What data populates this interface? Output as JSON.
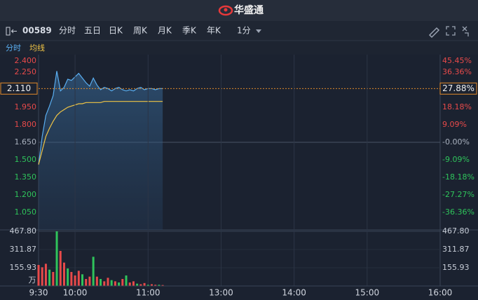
{
  "header": {
    "logo": "华盛通"
  },
  "toolbar": {
    "symbol": "00589",
    "tabs": [
      "分时",
      "五日",
      "日K",
      "周K",
      "月K",
      "季K",
      "年K",
      "1分"
    ],
    "active": 0
  },
  "chart_data": [
    {
      "type": "line",
      "x": [
        0,
        3,
        6,
        9,
        12,
        15,
        18,
        21,
        24,
        27,
        30,
        33,
        36,
        39,
        42,
        45,
        48,
        51,
        54,
        57,
        60,
        63,
        66,
        69,
        72,
        75,
        78,
        81,
        84,
        87,
        90,
        93,
        96,
        99,
        102
      ],
      "series": [
        {
          "name": "分时",
          "color": "#5aaef0",
          "values": [
            1.46,
            1.7,
            1.88,
            1.96,
            2.05,
            2.26,
            2.09,
            2.12,
            2.19,
            2.18,
            2.21,
            2.24,
            2.2,
            2.16,
            2.13,
            2.2,
            2.14,
            2.1,
            2.12,
            2.11,
            2.09,
            2.11,
            2.12,
            2.1,
            2.09,
            2.1,
            2.09,
            2.11,
            2.12,
            2.1,
            2.11,
            2.11,
            2.1,
            2.11,
            2.11
          ]
        },
        {
          "name": "均线",
          "color": "#f0c445",
          "values": [
            1.46,
            1.58,
            1.7,
            1.77,
            1.83,
            1.88,
            1.91,
            1.93,
            1.95,
            1.96,
            1.97,
            1.98,
            1.98,
            1.99,
            1.99,
            1.99,
            1.99,
            1.99,
            2.0,
            2.0,
            2.0,
            2.0,
            2.0,
            2.0,
            2.0,
            2.0,
            2.0,
            2.0,
            2.0,
            2.0,
            2.0,
            2.0,
            2.0,
            2.0,
            2.0
          ]
        }
      ],
      "xlim": [
        0,
        330
      ],
      "ylim": [
        0.9,
        2.4
      ],
      "yticks": [
        {
          "value": 2.4,
          "label": "2.400"
        },
        {
          "value": 2.25,
          "label": "2.250"
        },
        {
          "value": 1.95,
          "label": "1.950"
        },
        {
          "value": 1.8,
          "label": "1.800"
        },
        {
          "value": 1.65,
          "label": "1.650"
        },
        {
          "value": 1.5,
          "label": "1.500"
        },
        {
          "value": 1.35,
          "label": "1.350"
        },
        {
          "value": 1.2,
          "label": "1.200"
        },
        {
          "value": 1.05,
          "label": "1.050"
        }
      ],
      "y2lim": [
        -45.45,
        45.45
      ],
      "y2ticks": [
        {
          "value": 45.45,
          "label": "45.45%"
        },
        {
          "value": 36.36,
          "label": "36.36%"
        },
        {
          "value": 18.18,
          "label": "18.18%"
        },
        {
          "value": 9.09,
          "label": "9.09%"
        },
        {
          "value": 0,
          "label": "-0.00%"
        },
        {
          "value": -9.09,
          "label": "-9.09%"
        },
        {
          "value": -18.18,
          "label": "-18.18%"
        },
        {
          "value": -27.27,
          "label": "-27.27%"
        },
        {
          "value": -36.36,
          "label": "-36.36%"
        }
      ],
      "last_price": {
        "value": 2.11,
        "label": "2.110"
      },
      "last_change": {
        "value": 27.88,
        "label": "27.88%"
      }
    },
    {
      "type": "bar",
      "x": [
        0,
        3,
        6,
        9,
        12,
        15,
        18,
        21,
        24,
        27,
        30,
        33,
        36,
        39,
        42,
        45,
        48,
        51,
        54,
        57,
        60,
        63,
        66,
        69,
        72,
        75,
        78,
        81,
        84,
        87,
        90,
        93,
        96,
        99,
        102
      ],
      "values": [
        180,
        160,
        190,
        140,
        120,
        467.8,
        300,
        200,
        150,
        120,
        90,
        130,
        100,
        60,
        80,
        250,
        80,
        60,
        40,
        70,
        50,
        40,
        30,
        60,
        90,
        30,
        40,
        20,
        15,
        25,
        10,
        15,
        10,
        10,
        8
      ],
      "colors": [
        "#e84a4a",
        "#e84a4a",
        "#e84a4a",
        "#2fc45b",
        "#e84a4a",
        "#2fc45b",
        "#e84a4a",
        "#e84a4a",
        "#2fc45b",
        "#e84a4a",
        "#e84a4a",
        "#e84a4a",
        "#2fc45b",
        "#e84a4a",
        "#e84a4a",
        "#2fc45b",
        "#e84a4a",
        "#2fc45b",
        "#e84a4a",
        "#e84a4a",
        "#2fc45b",
        "#e84a4a",
        "#2fc45b",
        "#e84a4a",
        "#2fc45b",
        "#e84a4a",
        "#e84a4a",
        "#2fc45b",
        "#e84a4a",
        "#e84a4a",
        "#2fc45b",
        "#e84a4a",
        "#e84a4a",
        "#2fc45b",
        "#e84a4a"
      ],
      "xlim": [
        0,
        330
      ],
      "ylim": [
        0,
        467.8
      ],
      "yticks": [
        {
          "value": 467.8,
          "label": "467.80"
        },
        311.87,
        155.93
      ],
      "unit": "万",
      "xticks": [
        {
          "value": 0,
          "label": "9:30"
        },
        {
          "value": 30,
          "label": "10:00"
        },
        {
          "value": 90,
          "label": "11:00"
        },
        {
          "value": 150,
          "label": "13:00"
        },
        {
          "value": 210,
          "label": "14:00"
        },
        {
          "value": 270,
          "label": "15:00"
        },
        {
          "value": 330,
          "label": "16:00"
        }
      ]
    }
  ]
}
